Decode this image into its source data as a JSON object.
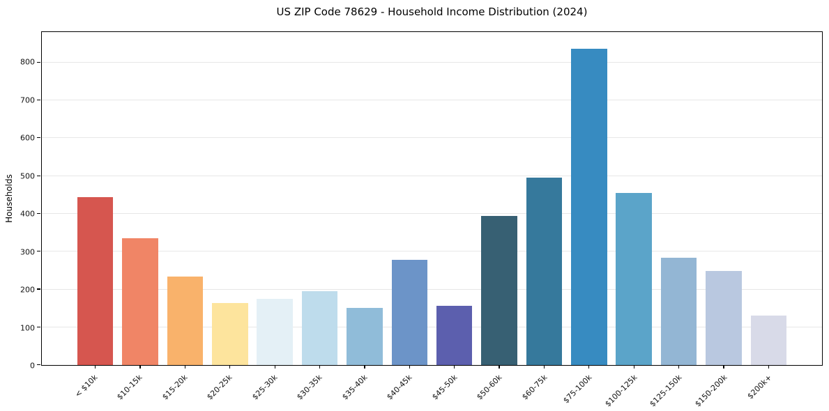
{
  "chart_data": {
    "type": "bar",
    "title": "US ZIP Code 78629 - Household Income Distribution (2024)",
    "xlabel": "",
    "ylabel": "Households",
    "categories": [
      "< $10k",
      "$10-15k",
      "$15-20k",
      "$20-25k",
      "$25-30k",
      "$30-35k",
      "$35-40k",
      "$40-45k",
      "$45-50k",
      "$50-60k",
      "$60-75k",
      "$75-100k",
      "$100-125k",
      "$125-150k",
      "$150-200k",
      "$200k+"
    ],
    "values": [
      445,
      336,
      235,
      164,
      176,
      195,
      151,
      279,
      157,
      395,
      496,
      837,
      456,
      284,
      248,
      131
    ],
    "bar_colors": [
      "#d6564f",
      "#f08566",
      "#f9b26b",
      "#fde49d",
      "#e4f0f6",
      "#bedcec",
      "#90bcd9",
      "#6c94c8",
      "#5c5fae",
      "#376073",
      "#36799c",
      "#378bc1",
      "#5ba4c9",
      "#93b6d4",
      "#b9c8e0",
      "#d8dae8"
    ],
    "ylim": [
      0,
      881
    ],
    "xlim": [
      -1.19,
      16.19
    ],
    "bar_width": 0.8,
    "yticks": [
      0,
      100,
      200,
      300,
      400,
      500,
      600,
      700,
      800
    ],
    "grid": true,
    "legend": "none",
    "axis_color": "#000000",
    "grid_color": "#e7e7e7",
    "background_color": "#ffffff"
  }
}
